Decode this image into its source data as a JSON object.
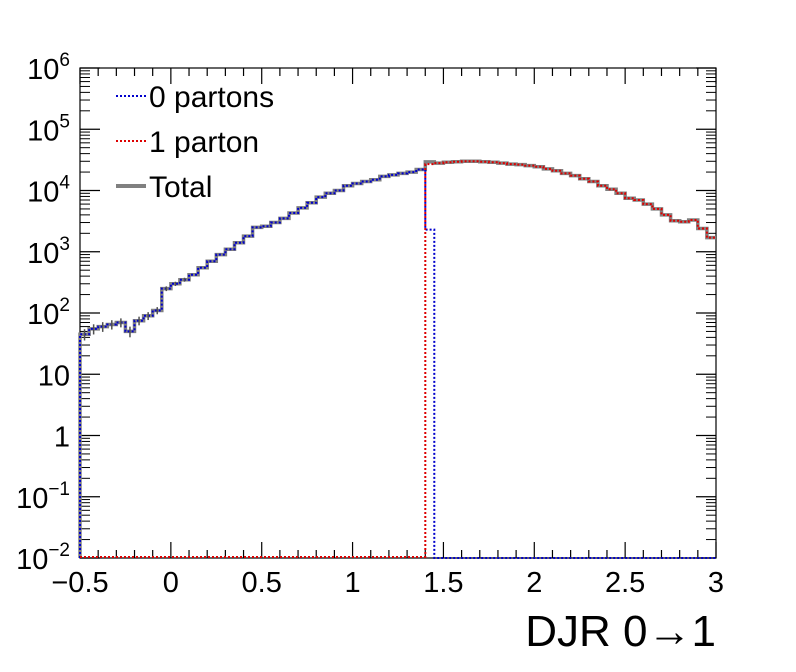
{
  "chart_data": {
    "type": "line",
    "step": true,
    "xlabel": "DJR 0→1",
    "ylabel": "",
    "xlim": [
      -0.5,
      3
    ],
    "ylim": [
      0.01,
      1000000
    ],
    "yscale": "log",
    "grid": false,
    "legend_position": "top-left",
    "x_ticks": [
      {
        "value": -0.5,
        "label": "−0.5"
      },
      {
        "value": 0,
        "label": "0"
      },
      {
        "value": 0.5,
        "label": "0.5"
      },
      {
        "value": 1,
        "label": "1"
      },
      {
        "value": 1.5,
        "label": "1.5"
      },
      {
        "value": 2,
        "label": "2"
      },
      {
        "value": 2.5,
        "label": "2.5"
      },
      {
        "value": 3,
        "label": "3"
      }
    ],
    "y_ticks": [
      {
        "value": 0.01,
        "base": "10",
        "exp": "−2"
      },
      {
        "value": 0.1,
        "base": "10",
        "exp": "−1"
      },
      {
        "value": 1,
        "base": "1",
        "exp": ""
      },
      {
        "value": 10,
        "base": "10",
        "exp": ""
      },
      {
        "value": 100,
        "base": "10",
        "exp": "2"
      },
      {
        "value": 1000,
        "base": "10",
        "exp": "3"
      },
      {
        "value": 10000,
        "base": "10",
        "exp": "4"
      },
      {
        "value": 100000,
        "base": "10",
        "exp": "5"
      },
      {
        "value": 1000000,
        "base": "10",
        "exp": "6"
      }
    ],
    "bin_width": 0.05,
    "series": [
      {
        "name": "0 partons",
        "color": "#0000cc",
        "style": "dotted",
        "x": [
          -0.475,
          -0.425,
          -0.375,
          -0.325,
          -0.275,
          -0.225,
          -0.175,
          -0.125,
          -0.075,
          -0.025,
          0.025,
          0.075,
          0.125,
          0.175,
          0.225,
          0.275,
          0.325,
          0.375,
          0.425,
          0.475,
          0.525,
          0.575,
          0.625,
          0.675,
          0.725,
          0.775,
          0.825,
          0.875,
          0.925,
          0.975,
          1.025,
          1.075,
          1.125,
          1.175,
          1.225,
          1.275,
          1.325,
          1.375,
          1.425,
          1.475
        ],
        "values": [
          45,
          55,
          60,
          65,
          70,
          50,
          75,
          90,
          110,
          250,
          300,
          350,
          420,
          550,
          700,
          900,
          1100,
          1400,
          1800,
          2500,
          2600,
          3000,
          3500,
          4300,
          5200,
          6300,
          7800,
          9000,
          10000,
          12000,
          13000,
          14000,
          15000,
          17000,
          18000,
          19000,
          20000,
          22000,
          2300,
          0.01
        ]
      },
      {
        "name": "1 parton",
        "color": "#dd0000",
        "style": "dotted",
        "x": [
          1.425,
          1.475,
          1.525,
          1.575,
          1.625,
          1.675,
          1.725,
          1.775,
          1.825,
          1.875,
          1.925,
          1.975,
          2.025,
          2.075,
          2.125,
          2.175,
          2.225,
          2.275,
          2.325,
          2.375,
          2.425,
          2.475,
          2.525,
          2.575,
          2.625,
          2.675,
          2.725,
          2.775,
          2.825,
          2.875,
          2.925,
          2.975
        ],
        "values": [
          27000,
          28000,
          29000,
          29500,
          30000,
          30000,
          29500,
          29000,
          28000,
          27000,
          26500,
          25500,
          24500,
          22500,
          21000,
          19000,
          17500,
          15500,
          14000,
          12000,
          10500,
          9000,
          7500,
          7000,
          6000,
          5000,
          4000,
          3200,
          3100,
          3300,
          2400,
          1700
        ]
      },
      {
        "name": "Total",
        "color": "#808080",
        "style": "solid",
        "x": [
          -0.475,
          -0.425,
          -0.375,
          -0.325,
          -0.275,
          -0.225,
          -0.175,
          -0.125,
          -0.075,
          -0.025,
          0.025,
          0.075,
          0.125,
          0.175,
          0.225,
          0.275,
          0.325,
          0.375,
          0.425,
          0.475,
          0.525,
          0.575,
          0.625,
          0.675,
          0.725,
          0.775,
          0.825,
          0.875,
          0.925,
          0.975,
          1.025,
          1.075,
          1.125,
          1.175,
          1.225,
          1.275,
          1.325,
          1.375,
          1.425,
          1.475,
          1.525,
          1.575,
          1.625,
          1.675,
          1.725,
          1.775,
          1.825,
          1.875,
          1.925,
          1.975,
          2.025,
          2.075,
          2.125,
          2.175,
          2.225,
          2.275,
          2.325,
          2.375,
          2.425,
          2.475,
          2.525,
          2.575,
          2.625,
          2.675,
          2.725,
          2.775,
          2.825,
          2.875,
          2.925,
          2.975
        ],
        "values": [
          45,
          55,
          60,
          65,
          70,
          50,
          75,
          90,
          110,
          250,
          300,
          350,
          420,
          550,
          700,
          900,
          1100,
          1400,
          1800,
          2500,
          2600,
          3000,
          3500,
          4300,
          5200,
          6300,
          7800,
          9000,
          10000,
          12000,
          13000,
          14000,
          15000,
          17000,
          18000,
          19000,
          20000,
          22000,
          29300,
          28000,
          29000,
          29500,
          30000,
          30000,
          29500,
          29000,
          28000,
          27000,
          26500,
          25500,
          24500,
          22500,
          21000,
          19000,
          17500,
          15500,
          14000,
          12000,
          10500,
          9000,
          7500,
          7000,
          6000,
          5000,
          4000,
          3200,
          3100,
          3300,
          2400,
          1700
        ]
      }
    ]
  }
}
